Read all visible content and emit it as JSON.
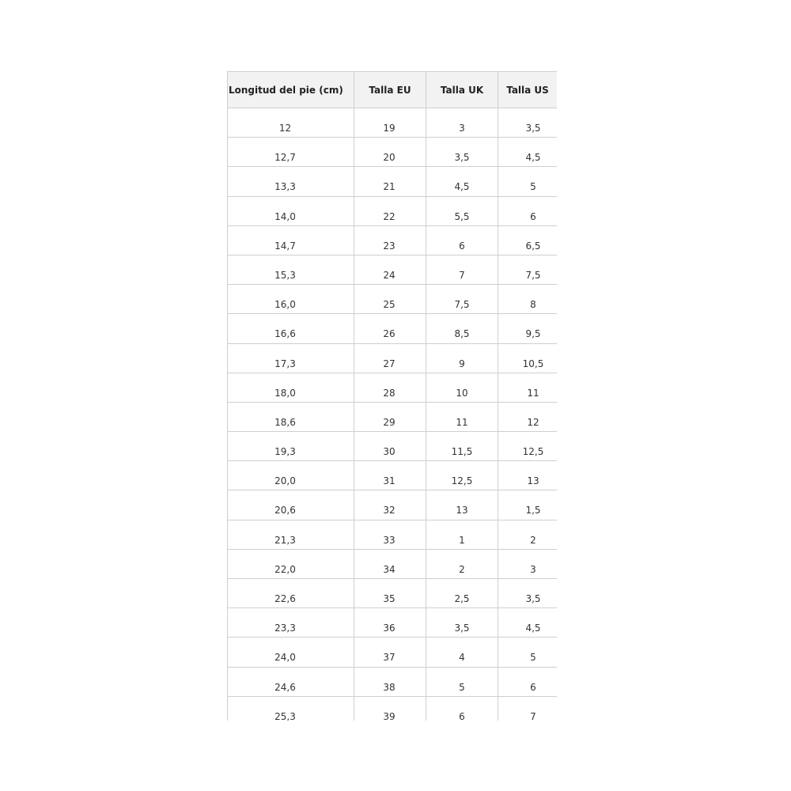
{
  "table": {
    "headers": [
      "Longitud del pie (cm)",
      "Talla EU",
      "Talla UK",
      "Talla US"
    ],
    "rows": [
      [
        "12",
        "19",
        "3",
        "3,5"
      ],
      [
        "12,7",
        "20",
        "3,5",
        "4,5"
      ],
      [
        "13,3",
        "21",
        "4,5",
        "5"
      ],
      [
        "14,0",
        "22",
        "5,5",
        "6"
      ],
      [
        "14,7",
        "23",
        "6",
        "6,5"
      ],
      [
        "15,3",
        "24",
        "7",
        "7,5"
      ],
      [
        "16,0",
        "25",
        "7,5",
        "8"
      ],
      [
        "16,6",
        "26",
        "8,5",
        "9,5"
      ],
      [
        "17,3",
        "27",
        "9",
        "10,5"
      ],
      [
        "18,0",
        "28",
        "10",
        "11"
      ],
      [
        "18,6",
        "29",
        "11",
        "12"
      ],
      [
        "19,3",
        "30",
        "11,5",
        "12,5"
      ],
      [
        "20,0",
        "31",
        "12,5",
        "13"
      ],
      [
        "20,6",
        "32",
        "13",
        "1,5"
      ],
      [
        "21,3",
        "33",
        "1",
        "2"
      ],
      [
        "22,0",
        "34",
        "2",
        "3"
      ],
      [
        "22,6",
        "35",
        "2,5",
        "3,5"
      ],
      [
        "23,3",
        "36",
        "3,5",
        "4,5"
      ],
      [
        "24,0",
        "37",
        "4",
        "5"
      ],
      [
        "24,6",
        "38",
        "5",
        "6"
      ],
      [
        "25,3",
        "39",
        "6",
        "7"
      ]
    ]
  },
  "colors": {
    "header_bg": "#f2f2f2",
    "border": "#cfcfcf",
    "text": "#333333"
  }
}
